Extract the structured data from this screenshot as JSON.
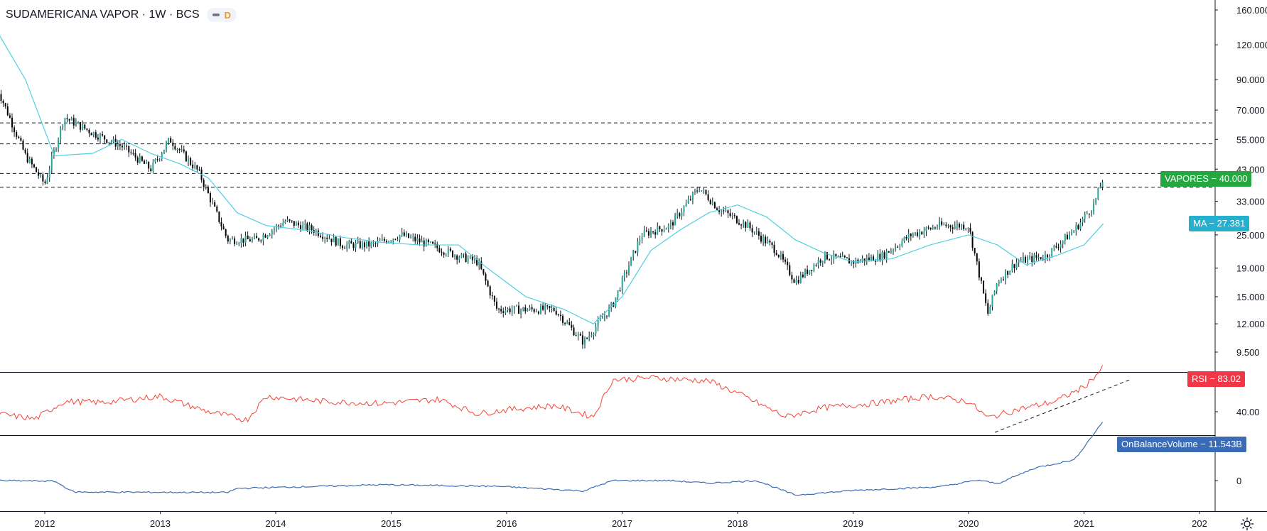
{
  "header": {
    "symbol_title": "SUDAMERICANA VAPOR · 1W · BCS",
    "indicator_letter": "D",
    "indicator_color": "#f7931a"
  },
  "price_axis": {
    "ticks": [
      "160.000",
      "120.000",
      "90.000",
      "70.000",
      "55.000",
      "43.000",
      "33.000",
      "25.000",
      "19.000",
      "15.000",
      "12.000",
      "9.500"
    ],
    "tick_values": [
      160,
      120,
      90,
      70,
      55,
      43,
      33,
      25,
      19,
      15,
      12,
      9.5
    ],
    "scale": "log"
  },
  "rsi_axis": {
    "ticks": [
      "40.00"
    ]
  },
  "obv_axis": {
    "ticks": [
      "0"
    ]
  },
  "time_axis": {
    "labels": [
      "2012",
      "2013",
      "2014",
      "2015",
      "2016",
      "2017",
      "2018",
      "2019",
      "2020",
      "2021",
      "202"
    ]
  },
  "tags": {
    "price": "VAPORES − 40.000",
    "ma": "MA − 27.381",
    "rsi": "RSI − 83.02",
    "obv": "OnBalanceVolume − 11.543B"
  },
  "colors": {
    "up": "#26a69a",
    "down": "#000000",
    "ma": "#4dd0e1",
    "rsi": "#f44336",
    "obv": "#3d6eb3",
    "price_tag": "#26a640",
    "ma_tag": "#26b0cf",
    "rsi_tag": "#f23645",
    "obv_tag": "#3b6bb5"
  },
  "chart_data": [
    {
      "type": "line",
      "title": "",
      "series": [
        {
          "name": "VAPORES",
          "x": [
            "2011-08",
            "2011-11",
            "2012-01",
            "2012-03",
            "2012-06",
            "2012-09",
            "2012-12",
            "2013-02",
            "2013-05",
            "2013-08",
            "2013-11",
            "2014-02",
            "2014-05",
            "2014-08",
            "2014-11",
            "2015-02",
            "2015-05",
            "2015-08",
            "2015-10",
            "2015-12",
            "2016-03",
            "2016-06",
            "2016-09",
            "2016-12",
            "2017-03",
            "2017-06",
            "2017-09",
            "2017-11",
            "2018-02",
            "2018-05",
            "2018-07",
            "2018-10",
            "2019-01",
            "2019-04",
            "2019-07",
            "2019-10",
            "2020-01",
            "2020-03",
            "2020-04",
            "2020-06",
            "2020-09",
            "2020-12",
            "2021-02",
            "2021-03"
          ],
          "values": [
            85,
            48,
            38,
            66,
            58,
            52,
            43,
            55,
            42,
            24,
            24,
            28,
            26,
            23,
            23,
            25,
            23,
            21,
            20,
            13.5,
            13.5,
            13.5,
            10.3,
            14,
            25,
            27,
            37,
            31,
            27,
            22,
            17,
            21,
            20,
            21,
            25,
            27,
            27,
            13,
            17,
            20,
            21,
            26,
            32,
            40
          ]
        },
        {
          "name": "MA",
          "x": [
            "2011-08",
            "2011-11",
            "2012-02",
            "2012-06",
            "2012-09",
            "2012-12",
            "2013-03",
            "2013-06",
            "2013-09",
            "2013-12",
            "2014-04",
            "2014-08",
            "2014-12",
            "2015-04",
            "2015-08",
            "2015-11",
            "2016-03",
            "2016-07",
            "2016-10",
            "2017-01",
            "2017-04",
            "2017-07",
            "2017-10",
            "2018-01",
            "2018-04",
            "2018-07",
            "2018-10",
            "2019-01",
            "2019-05",
            "2019-09",
            "2020-01",
            "2020-04",
            "2020-07",
            "2020-10",
            "2021-01",
            "2021-03"
          ],
          "values": [
            135,
            90,
            48,
            49,
            55,
            49,
            45,
            40,
            30,
            27,
            26,
            24.5,
            23.5,
            23,
            23,
            19,
            15,
            13.5,
            12,
            15,
            22,
            26,
            30,
            32,
            29,
            24,
            21.5,
            20,
            20.5,
            23,
            25,
            23,
            19.5,
            21,
            23,
            27.4
          ]
        }
      ]
    },
    {
      "type": "line",
      "series": [
        {
          "name": "RSI",
          "x": [
            "2011-08",
            "2011-12",
            "2012-03",
            "2012-07",
            "2013-01",
            "2013-06",
            "2013-10",
            "2013-12",
            "2014-06",
            "2014-12",
            "2015-06",
            "2015-10",
            "2016-01",
            "2016-06",
            "2016-10",
            "2016-12",
            "2017-04",
            "2017-10",
            "2018-01",
            "2018-06",
            "2018-10",
            "2019-03",
            "2019-09",
            "2020-01",
            "2020-03",
            "2020-06",
            "2020-10",
            "2021-01",
            "2021-03"
          ],
          "values": [
            38,
            33,
            50,
            49,
            55,
            40,
            32,
            55,
            50,
            48,
            52,
            38,
            42,
            46,
            35,
            71,
            73,
            70,
            58,
            35,
            44,
            48,
            55,
            50,
            34,
            42,
            50,
            64,
            83
          ]
        }
      ]
    },
    {
      "type": "line",
      "series": [
        {
          "name": "OnBalanceVolume",
          "x": [
            "2011-08",
            "2012-02",
            "2012-04",
            "2013-08",
            "2013-09",
            "2014-12",
            "2015-12",
            "2016-09",
            "2016-12",
            "2017-06",
            "2017-10",
            "2018-03",
            "2018-07",
            "2019-01",
            "2019-10",
            "2020-02",
            "2020-04",
            "2020-08",
            "2020-12",
            "2021-03"
          ],
          "values": [
            0.0,
            -0.1,
            -2.2,
            -2.3,
            -1.5,
            -0.8,
            -1.1,
            -2.0,
            0.0,
            0.0,
            -0.5,
            0.0,
            -2.8,
            -1.9,
            -1.2,
            0.1,
            -0.6,
            2.5,
            4.0,
            11.5
          ]
        }
      ]
    }
  ]
}
